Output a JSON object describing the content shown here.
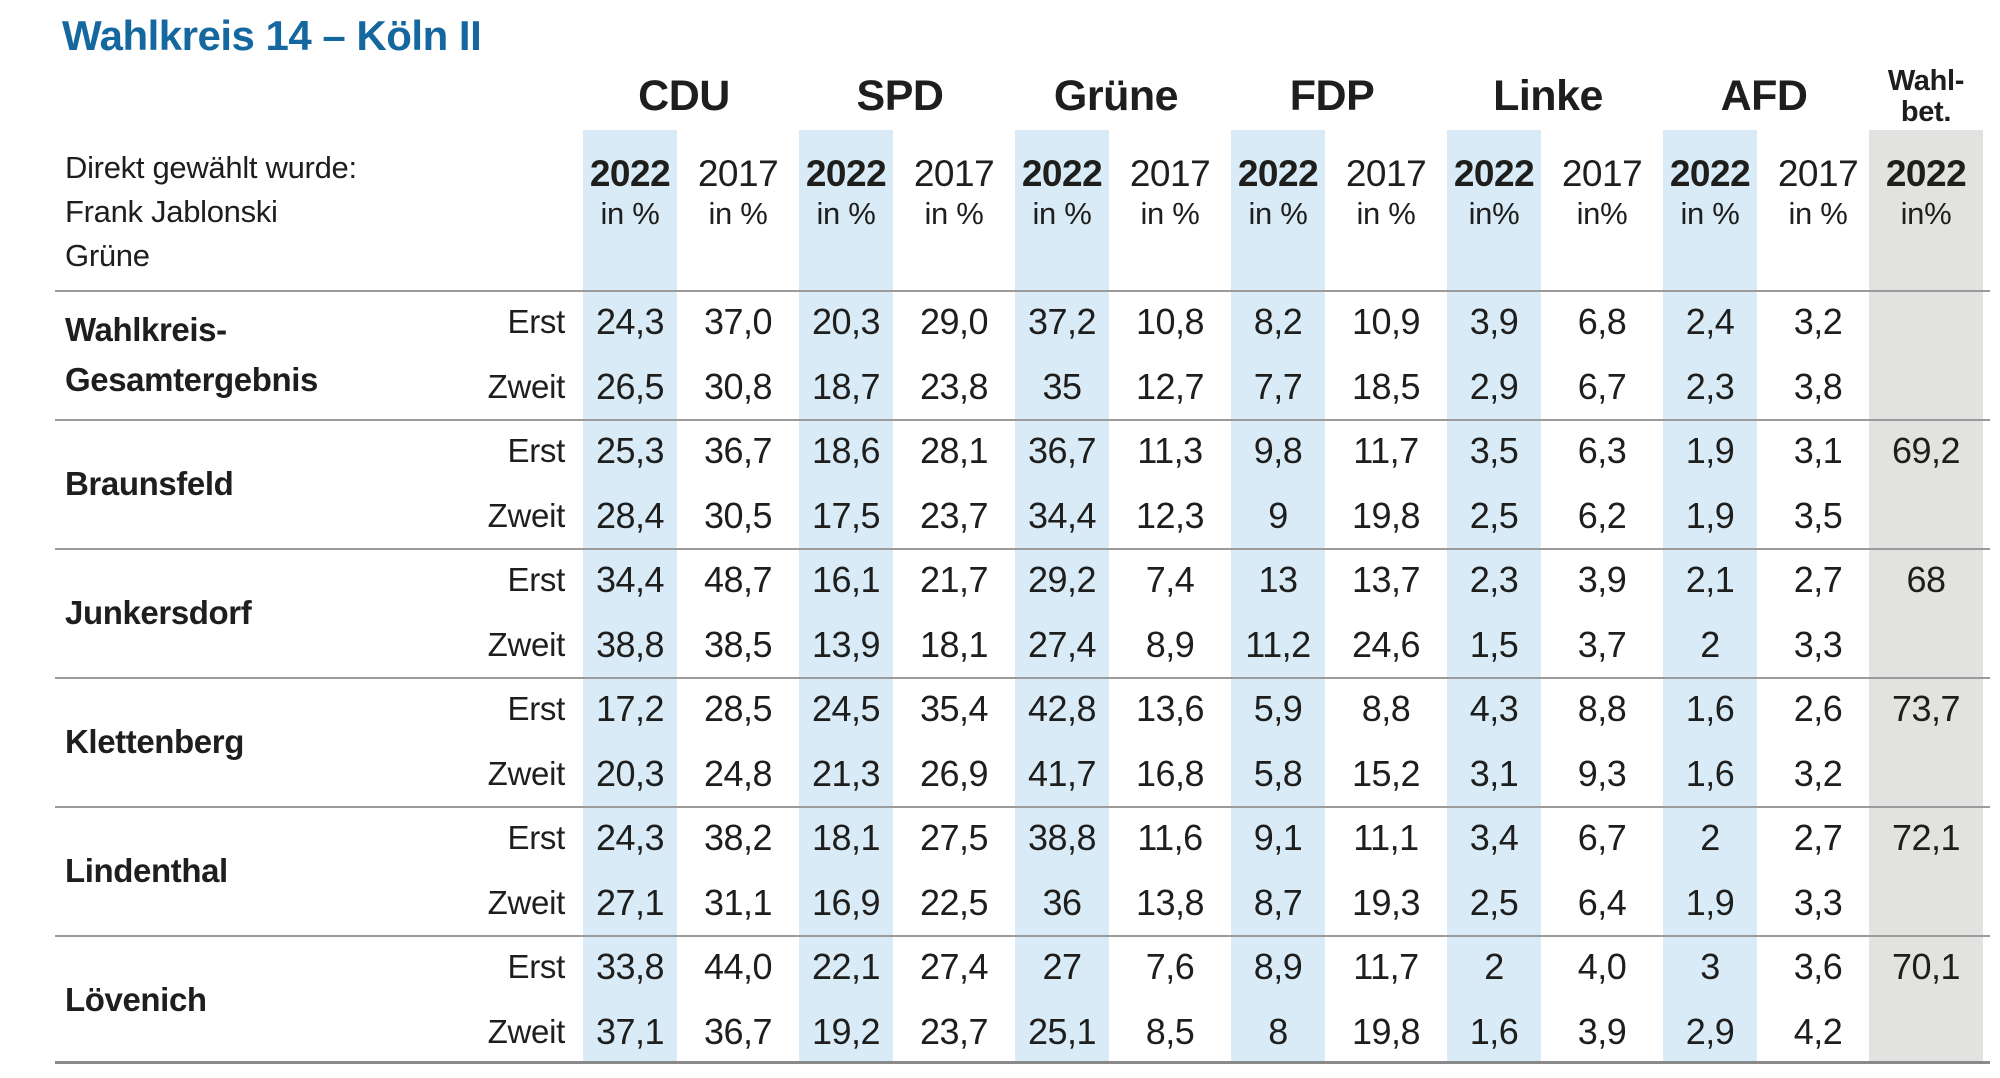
{
  "title": "Wahlkreis 14 – Köln II",
  "note_lines": [
    "Direkt gewählt wurde:",
    "Frank Jablonski",
    "Grüne"
  ],
  "colors": {
    "title": "#15689f",
    "stripe_2022": "#d9ebf7",
    "stripe_turnout": "#e2e2e0",
    "rule": "#9b9b9b",
    "text": "#1e1e1c"
  },
  "header": {
    "parties": [
      "CDU",
      "SPD",
      "Grüne",
      "FDP",
      "Linke",
      "AFD"
    ],
    "turnout_label_lines": [
      "Wahl-",
      "bet."
    ],
    "vote_labels": {
      "erst": "Erst",
      "zweit": "Zweit"
    },
    "year_columns": [
      {
        "party": "CDU",
        "year": "2022",
        "unit": "in %",
        "highlight": true
      },
      {
        "party": "CDU",
        "year": "2017",
        "unit": "in %",
        "highlight": false
      },
      {
        "party": "SPD",
        "year": "2022",
        "unit": "in %",
        "highlight": true
      },
      {
        "party": "SPD",
        "year": "2017",
        "unit": "in %",
        "highlight": false
      },
      {
        "party": "Grüne",
        "year": "2022",
        "unit": "in %",
        "highlight": true
      },
      {
        "party": "Grüne",
        "year": "2017",
        "unit": "in %",
        "highlight": false
      },
      {
        "party": "FDP",
        "year": "2022",
        "unit": "in %",
        "highlight": true
      },
      {
        "party": "FDP",
        "year": "2017",
        "unit": "in %",
        "highlight": false
      },
      {
        "party": "Linke",
        "year": "2022",
        "unit": "in%",
        "highlight": true
      },
      {
        "party": "Linke",
        "year": "2017",
        "unit": "in%",
        "highlight": false
      },
      {
        "party": "AFD",
        "year": "2022",
        "unit": "in %",
        "highlight": true
      },
      {
        "party": "AFD",
        "year": "2017",
        "unit": "in %",
        "highlight": false
      },
      {
        "party": "Wahlbet.",
        "year": "2022",
        "unit": "in%",
        "highlight": true,
        "turnout": true
      }
    ]
  },
  "chart_data": {
    "type": "table",
    "title": "Wahlkreis 14 – Köln II",
    "note": "Direkt gewählt wurde: Frank Jablonski, Grüne",
    "columns": [
      "CDU 2022 in %",
      "CDU 2017 in %",
      "SPD 2022 in %",
      "SPD 2017 in %",
      "Grüne 2022 in %",
      "Grüne 2017 in %",
      "FDP 2022 in %",
      "FDP 2017 in %",
      "Linke 2022 in%",
      "Linke 2017 in%",
      "AFD 2022 in %",
      "AFD 2017 in %",
      "Wahlbet. 2022 in%"
    ],
    "row_types": [
      "Erst",
      "Zweit"
    ],
    "rows": [
      {
        "district": "Wahlkreis-Gesamtergebnis",
        "district_lines": [
          "Wahlkreis-",
          "Gesamtergebnis"
        ],
        "erst": [
          "24,3",
          "37,0",
          "20,3",
          "29,0",
          "37,2",
          "10,8",
          "8,2",
          "10,9",
          "3,9",
          "6,8",
          "2,4",
          "3,2"
        ],
        "zweit": [
          "26,5",
          "30,8",
          "18,7",
          "23,8",
          "35",
          "12,7",
          "7,7",
          "18,5",
          "2,9",
          "6,7",
          "2,3",
          "3,8"
        ],
        "wahlbeteiligung": ""
      },
      {
        "district": "Braunsfeld",
        "erst": [
          "25,3",
          "36,7",
          "18,6",
          "28,1",
          "36,7",
          "11,3",
          "9,8",
          "11,7",
          "3,5",
          "6,3",
          "1,9",
          "3,1"
        ],
        "zweit": [
          "28,4",
          "30,5",
          "17,5",
          "23,7",
          "34,4",
          "12,3",
          "9",
          "19,8",
          "2,5",
          "6,2",
          "1,9",
          "3,5"
        ],
        "wahlbeteiligung": "69,2"
      },
      {
        "district": "Junkersdorf",
        "erst": [
          "34,4",
          "48,7",
          "16,1",
          "21,7",
          "29,2",
          "7,4",
          "13",
          "13,7",
          "2,3",
          "3,9",
          "2,1",
          "2,7"
        ],
        "zweit": [
          "38,8",
          "38,5",
          "13,9",
          "18,1",
          "27,4",
          "8,9",
          "11,2",
          "24,6",
          "1,5",
          "3,7",
          "2",
          "3,3"
        ],
        "wahlbeteiligung": "68"
      },
      {
        "district": "Klettenberg",
        "erst": [
          "17,2",
          "28,5",
          "24,5",
          "35,4",
          "42,8",
          "13,6",
          "5,9",
          "8,8",
          "4,3",
          "8,8",
          "1,6",
          "2,6"
        ],
        "zweit": [
          "20,3",
          "24,8",
          "21,3",
          "26,9",
          "41,7",
          "16,8",
          "5,8",
          "15,2",
          "3,1",
          "9,3",
          "1,6",
          "3,2"
        ],
        "wahlbeteiligung": "73,7"
      },
      {
        "district": "Lindenthal",
        "erst": [
          "24,3",
          "38,2",
          "18,1",
          "27,5",
          "38,8",
          "11,6",
          "9,1",
          "11,1",
          "3,4",
          "6,7",
          "2",
          "2,7"
        ],
        "zweit": [
          "27,1",
          "31,1",
          "16,9",
          "22,5",
          "36",
          "13,8",
          "8,7",
          "19,3",
          "2,5",
          "6,4",
          "1,9",
          "3,3"
        ],
        "wahlbeteiligung": "72,1"
      },
      {
        "district": "Lövenich",
        "erst": [
          "33,8",
          "44,0",
          "22,1",
          "27,4",
          "27",
          "7,6",
          "8,9",
          "11,7",
          "2",
          "4,0",
          "3",
          "3,6"
        ],
        "zweit": [
          "37,1",
          "36,7",
          "19,2",
          "23,7",
          "25,1",
          "8,5",
          "8",
          "19,8",
          "1,6",
          "3,9",
          "2,9",
          "4,2"
        ],
        "wahlbeteiligung": "70,1"
      }
    ]
  }
}
